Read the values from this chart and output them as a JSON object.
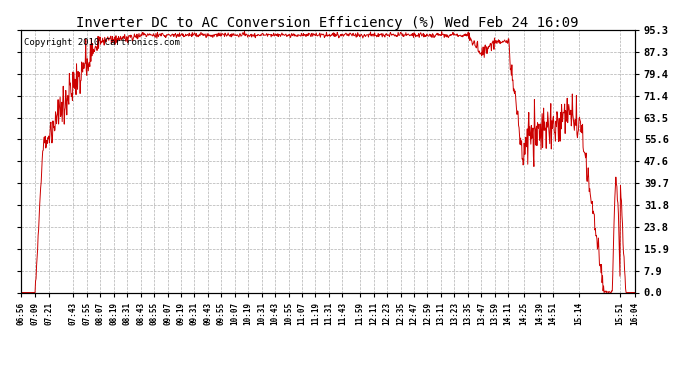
{
  "title": "Inverter DC to AC Conversion Efficiency (%) Wed Feb 24 16:09",
  "copyright": "Copyright 2010 Cartronics.com",
  "yticks": [
    0.0,
    7.9,
    15.9,
    23.8,
    31.8,
    39.7,
    47.6,
    55.6,
    63.5,
    71.4,
    79.4,
    87.3,
    95.3
  ],
  "ymin": 0.0,
  "ymax": 95.3,
  "line_color": "#cc0000",
  "bg_color": "#ffffff",
  "plot_bg_color": "#ffffff",
  "grid_color": "#b0b0b0",
  "title_fontsize": 10,
  "copyright_fontsize": 6.5,
  "xtick_fontsize": 5.5,
  "ytick_fontsize": 7.5,
  "xtick_labels": [
    "06:56",
    "07:09",
    "07:21",
    "07:43",
    "07:55",
    "08:07",
    "08:19",
    "08:31",
    "08:43",
    "08:55",
    "09:07",
    "09:19",
    "09:31",
    "09:43",
    "09:55",
    "10:07",
    "10:19",
    "10:31",
    "10:43",
    "10:55",
    "11:07",
    "11:19",
    "11:31",
    "11:43",
    "11:59",
    "12:11",
    "12:23",
    "12:35",
    "12:47",
    "12:59",
    "13:11",
    "13:23",
    "13:35",
    "13:47",
    "13:59",
    "14:11",
    "14:25",
    "14:39",
    "14:51",
    "15:14",
    "15:51",
    "16:04"
  ]
}
